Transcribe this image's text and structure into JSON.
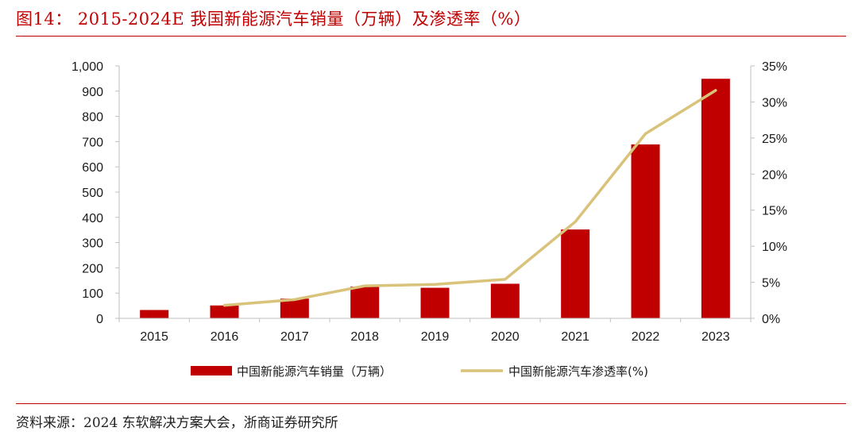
{
  "header": {
    "title": "图14： 2015-2024E 我国新能源汽车销量（万辆）及渗透率（%）"
  },
  "footer": {
    "source": "资料来源：2024 东软解决方案大会，浙商证券研究所"
  },
  "colors": {
    "accent": "#c00000",
    "bar": "#c00000",
    "line": "#d9c27a",
    "axis": "#bfbfbf"
  },
  "chart_data": {
    "type": "bar",
    "title": "",
    "xlabel": "",
    "ylabel": "",
    "categories": [
      "2015",
      "2016",
      "2017",
      "2018",
      "2019",
      "2020",
      "2021",
      "2022",
      "2023"
    ],
    "y_left": {
      "lim": [
        0,
        1000
      ],
      "ticks": [
        0,
        100,
        200,
        300,
        400,
        500,
        600,
        700,
        800,
        900,
        1000
      ],
      "tick_labels": [
        "0",
        "100",
        "200",
        "300",
        "400",
        "500",
        "600",
        "700",
        "800",
        "900",
        "1,000"
      ]
    },
    "y_right": {
      "lim": [
        0,
        35
      ],
      "ticks": [
        0,
        5,
        10,
        15,
        20,
        25,
        30,
        35
      ],
      "tick_labels": [
        "0%",
        "5%",
        "10%",
        "15%",
        "20%",
        "25%",
        "30%",
        "35%"
      ]
    },
    "series": [
      {
        "name": "中国新能源汽车销量（万辆）",
        "type": "bar",
        "axis": "left",
        "values": [
          33,
          51,
          78,
          126,
          121,
          137,
          352,
          689,
          949
        ]
      },
      {
        "name": "中国新能源汽车渗透率(%)",
        "type": "line",
        "axis": "right",
        "values": [
          null,
          1.8,
          2.6,
          4.5,
          4.7,
          5.4,
          13.4,
          25.6,
          31.6
        ]
      }
    ],
    "grid": false,
    "legend_position": "bottom"
  }
}
